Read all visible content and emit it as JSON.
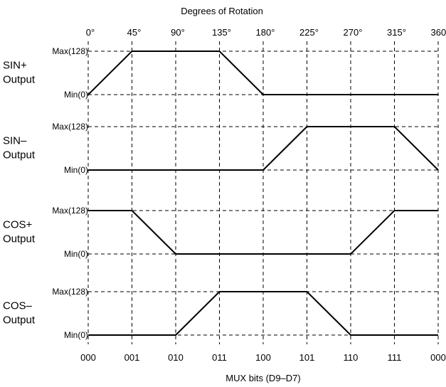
{
  "chart_data": {
    "type": "line",
    "title": "Degrees of Rotation",
    "xlabel": "MUX bits (D9–D7)",
    "x": [
      0,
      45,
      90,
      135,
      180,
      225,
      270,
      315,
      360
    ],
    "xlim": [
      0,
      360
    ],
    "top_tick_labels": [
      "0°",
      "45°",
      "90°",
      "135°",
      "180°",
      "225°",
      "270°",
      "315°",
      "360°"
    ],
    "bottom_tick_labels": [
      "000",
      "001",
      "010",
      "011",
      "100",
      "101",
      "110",
      "111",
      "000"
    ],
    "ylim": [
      0,
      128
    ],
    "grid": true,
    "panels": [
      {
        "name_lines": [
          "SIN+",
          "Output"
        ],
        "ymax_label": "Max(128)",
        "ymin_label": "Min(0)",
        "values": [
          0,
          128,
          128,
          128,
          0,
          0,
          0,
          0,
          0
        ]
      },
      {
        "name_lines": [
          "SIN–",
          "Output"
        ],
        "ymax_label": "Max(128)",
        "ymin_label": "Min(0)",
        "values": [
          0,
          0,
          0,
          0,
          0,
          128,
          128,
          128,
          0
        ]
      },
      {
        "name_lines": [
          "COS+",
          "Output"
        ],
        "ymax_label": "Max(128)",
        "ymin_label": "Min(0)",
        "values": [
          128,
          128,
          0,
          0,
          0,
          0,
          0,
          128,
          128
        ]
      },
      {
        "name_lines": [
          "COS–",
          "Output"
        ],
        "ymax_label": "Max(128)",
        "ymin_label": "Min(0)",
        "values": [
          0,
          0,
          0,
          128,
          128,
          128,
          0,
          0,
          0
        ]
      }
    ]
  }
}
